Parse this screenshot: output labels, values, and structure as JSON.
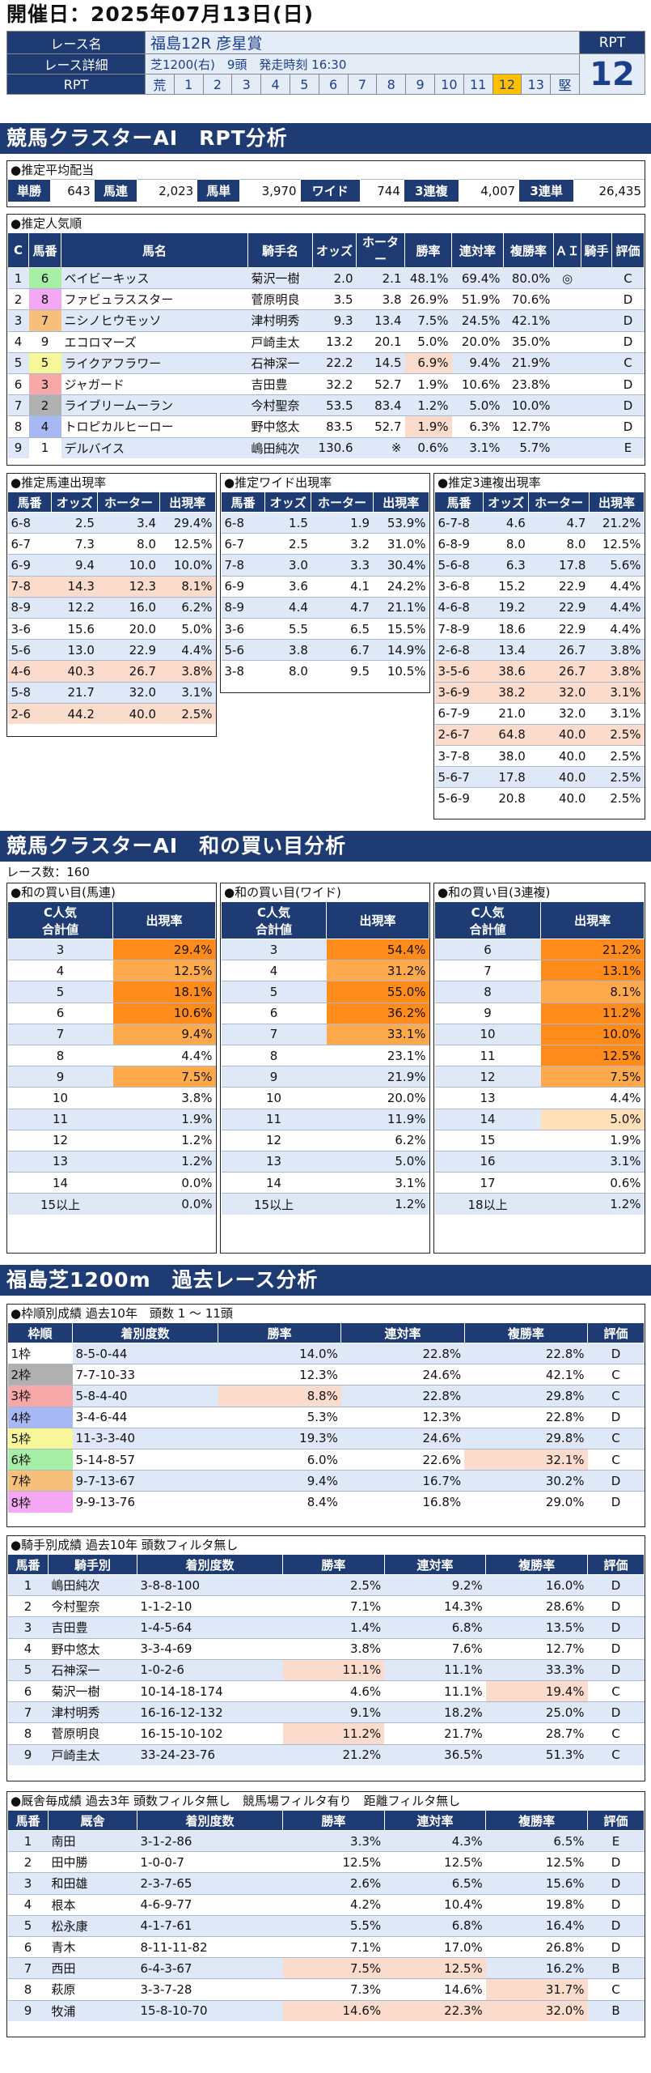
{
  "date_label": "開催日：2025年07月13日(日)",
  "race": {
    "name_label": "レース名",
    "name": "福島12R 彦星賞",
    "detail_label": "レース詳細",
    "detail": "芝1200(右)　9頭　発走時刻 16:30",
    "rpt_label": "RPT",
    "rpt_scale": [
      "荒",
      "1",
      "2",
      "3",
      "4",
      "5",
      "6",
      "7",
      "8",
      "9",
      "10",
      "11",
      "12",
      "13",
      "堅"
    ],
    "rpt_selected": "12",
    "rpt_head": "RPT",
    "rpt_value": "12"
  },
  "sec1_title": "競馬クラスターAI　RPT分析",
  "payout": {
    "title": "●推定平均配当",
    "items": [
      {
        "label": "単勝",
        "value": "643"
      },
      {
        "label": "馬連",
        "value": "2,023"
      },
      {
        "label": "馬単",
        "value": "3,970"
      },
      {
        "label": "ワイド",
        "value": "744"
      },
      {
        "label": "3連複",
        "value": "4,007"
      },
      {
        "label": "3連単",
        "value": "26,435"
      }
    ]
  },
  "popular": {
    "title": "●推定人気順",
    "headers": [
      "C",
      "馬番",
      "馬名",
      "騎手名",
      "オッズ",
      "ホーター",
      "勝率",
      "連対率",
      "複勝率",
      "ＡＩ",
      "騎手",
      "評価"
    ],
    "rows": [
      [
        "1",
        "6",
        "ベイビーキッス",
        "菊沢一樹",
        "2.0",
        "2.1",
        "48.1%",
        "69.4%",
        "80.0%",
        "◎",
        "",
        "C"
      ],
      [
        "2",
        "8",
        "ファビュラススター",
        "菅原明良",
        "3.5",
        "3.8",
        "26.9%",
        "51.9%",
        "70.6%",
        "",
        "",
        "D"
      ],
      [
        "3",
        "7",
        "ニシノヒウモッソ",
        "津村明秀",
        "9.3",
        "13.4",
        "7.5%",
        "24.5%",
        "42.1%",
        "",
        "",
        "D"
      ],
      [
        "4",
        "9",
        "エコロマーズ",
        "戸崎圭太",
        "13.2",
        "20.1",
        "5.0%",
        "20.0%",
        "35.0%",
        "",
        "",
        "D"
      ],
      [
        "5",
        "5",
        "ライクアフラワー",
        "石神深一",
        "22.2",
        "14.5",
        "6.9%",
        "9.4%",
        "21.9%",
        "",
        "",
        "C"
      ],
      [
        "6",
        "3",
        "ジャガード",
        "吉田豊",
        "32.2",
        "52.7",
        "1.9%",
        "10.6%",
        "23.8%",
        "",
        "",
        "D"
      ],
      [
        "7",
        "2",
        "ライブリームーラン",
        "今村聖奈",
        "53.5",
        "83.4",
        "1.2%",
        "5.0%",
        "10.0%",
        "",
        "",
        "D"
      ],
      [
        "8",
        "4",
        "トロピカルヒーロー",
        "野中悠太",
        "83.5",
        "52.7",
        "1.9%",
        "6.3%",
        "12.7%",
        "",
        "",
        "D"
      ],
      [
        "9",
        "1",
        "デルバイス",
        "嶋田純次",
        "130.6",
        "※",
        "0.6%",
        "3.1%",
        "5.7%",
        "",
        "",
        "E"
      ]
    ]
  },
  "umaren": {
    "title": "●推定馬連出現率",
    "headers": [
      "馬番",
      "オッズ",
      "ホーター",
      "出現率"
    ],
    "rows": [
      [
        "6-8",
        "2.5",
        "3.4",
        "29.4%"
      ],
      [
        "6-7",
        "7.3",
        "8.0",
        "12.5%"
      ],
      [
        "6-9",
        "9.4",
        "10.0",
        "10.0%"
      ],
      [
        "7-8",
        "14.3",
        "12.3",
        "8.1%"
      ],
      [
        "8-9",
        "12.2",
        "16.0",
        "6.2%"
      ],
      [
        "3-6",
        "15.6",
        "20.0",
        "5.0%"
      ],
      [
        "5-6",
        "13.0",
        "22.9",
        "4.4%"
      ],
      [
        "4-6",
        "40.3",
        "26.7",
        "3.8%"
      ],
      [
        "5-8",
        "21.7",
        "32.0",
        "3.1%"
      ],
      [
        "2-6",
        "44.2",
        "40.0",
        "2.5%"
      ]
    ]
  },
  "wide": {
    "title": "●推定ワイド出現率",
    "headers": [
      "馬番",
      "オッズ",
      "ホーター",
      "出現率"
    ],
    "rows": [
      [
        "6-8",
        "1.5",
        "1.9",
        "53.9%"
      ],
      [
        "6-7",
        "2.5",
        "3.2",
        "31.0%"
      ],
      [
        "7-8",
        "3.0",
        "3.3",
        "30.4%"
      ],
      [
        "6-9",
        "3.6",
        "4.1",
        "24.2%"
      ],
      [
        "8-9",
        "4.4",
        "4.7",
        "21.1%"
      ],
      [
        "3-6",
        "5.5",
        "6.5",
        "15.5%"
      ],
      [
        "5-6",
        "3.8",
        "6.7",
        "14.9%"
      ],
      [
        "3-8",
        "8.0",
        "9.5",
        "10.5%"
      ]
    ]
  },
  "sanrenpuku": {
    "title": "●推定3連複出現率",
    "headers": [
      "馬番",
      "オッズ",
      "ホーター",
      "出現率"
    ],
    "rows": [
      [
        "6-7-8",
        "4.6",
        "4.7",
        "21.2%"
      ],
      [
        "6-8-9",
        "8.0",
        "8.0",
        "12.5%"
      ],
      [
        "5-6-8",
        "6.3",
        "17.8",
        "5.6%"
      ],
      [
        "3-6-8",
        "15.2",
        "22.9",
        "4.4%"
      ],
      [
        "4-6-8",
        "19.2",
        "22.9",
        "4.4%"
      ],
      [
        "7-8-9",
        "18.6",
        "22.9",
        "4.4%"
      ],
      [
        "2-6-8",
        "13.4",
        "26.7",
        "3.8%"
      ],
      [
        "3-5-6",
        "38.6",
        "26.7",
        "3.8%"
      ],
      [
        "3-6-9",
        "38.2",
        "32.0",
        "3.1%"
      ],
      [
        "6-7-9",
        "21.0",
        "32.0",
        "3.1%"
      ],
      [
        "2-6-7",
        "64.8",
        "40.0",
        "2.5%"
      ],
      [
        "3-7-8",
        "38.0",
        "40.0",
        "2.5%"
      ],
      [
        "5-6-7",
        "17.8",
        "40.0",
        "2.5%"
      ],
      [
        "5-6-9",
        "20.8",
        "40.0",
        "2.5%"
      ]
    ]
  },
  "sec2_title": "競馬クラスターAI　和の買い目分析",
  "race_count": "レース数：160",
  "wa_umaren": {
    "title": "●和の買い目(馬連)",
    "headers": [
      "C人気\n合計値",
      "出現率"
    ],
    "rows": [
      [
        "3",
        "29.4%"
      ],
      [
        "4",
        "12.5%"
      ],
      [
        "5",
        "18.1%"
      ],
      [
        "6",
        "10.6%"
      ],
      [
        "7",
        "9.4%"
      ],
      [
        "8",
        "4.4%"
      ],
      [
        "9",
        "7.5%"
      ],
      [
        "10",
        "3.8%"
      ],
      [
        "11",
        "1.9%"
      ],
      [
        "12",
        "1.2%"
      ],
      [
        "13",
        "1.2%"
      ],
      [
        "14",
        "0.0%"
      ],
      [
        "15以上",
        "0.0%"
      ]
    ],
    "shade": [
      3,
      2,
      3,
      3,
      2,
      0,
      2,
      0,
      0,
      0,
      0,
      0,
      0
    ]
  },
  "wa_wide": {
    "title": "●和の買い目(ワイド)",
    "headers": [
      "C人気\n合計値",
      "出現率"
    ],
    "rows": [
      [
        "3",
        "54.4%"
      ],
      [
        "4",
        "31.2%"
      ],
      [
        "5",
        "55.0%"
      ],
      [
        "6",
        "36.2%"
      ],
      [
        "7",
        "33.1%"
      ],
      [
        "8",
        "23.1%"
      ],
      [
        "9",
        "21.9%"
      ],
      [
        "10",
        "20.0%"
      ],
      [
        "11",
        "11.9%"
      ],
      [
        "12",
        "6.2%"
      ],
      [
        "13",
        "5.0%"
      ],
      [
        "14",
        "3.1%"
      ],
      [
        "15以上",
        "1.2%"
      ]
    ],
    "shade": [
      3,
      2,
      3,
      3,
      2,
      0,
      0,
      0,
      0,
      0,
      0,
      0,
      0
    ]
  },
  "wa_sanren": {
    "title": "●和の買い目(3連複)",
    "headers": [
      "C人気\n合計値",
      "出現率"
    ],
    "rows": [
      [
        "6",
        "21.2%"
      ],
      [
        "7",
        "13.1%"
      ],
      [
        "8",
        "8.1%"
      ],
      [
        "9",
        "11.2%"
      ],
      [
        "10",
        "10.0%"
      ],
      [
        "11",
        "12.5%"
      ],
      [
        "12",
        "7.5%"
      ],
      [
        "13",
        "4.4%"
      ],
      [
        "14",
        "5.0%"
      ],
      [
        "15",
        "1.9%"
      ],
      [
        "16",
        "3.1%"
      ],
      [
        "17",
        "0.6%"
      ],
      [
        "18以上",
        "1.2%"
      ]
    ],
    "shade": [
      3,
      3,
      2,
      3,
      3,
      3,
      2,
      0,
      1,
      0,
      0,
      0,
      0
    ]
  },
  "sec3_title": "福島芝1200m　過去レース分析",
  "waku": {
    "title": "●枠順別成績 過去10年　頭数 1 ～ 11頭",
    "headers": [
      "枠順",
      "着別度数",
      "勝率",
      "連対率",
      "複勝率",
      "評価"
    ],
    "rows": [
      [
        "1枠",
        "8-5-0-44",
        "14.0%",
        "22.8%",
        "22.8%",
        "D"
      ],
      [
        "2枠",
        "7-7-10-33",
        "12.3%",
        "24.6%",
        "42.1%",
        "C"
      ],
      [
        "3枠",
        "5-8-4-40",
        "8.8%",
        "22.8%",
        "29.8%",
        "C"
      ],
      [
        "4枠",
        "3-4-6-44",
        "5.3%",
        "12.3%",
        "22.8%",
        "D"
      ],
      [
        "5枠",
        "11-3-3-40",
        "19.3%",
        "24.6%",
        "29.8%",
        "C"
      ],
      [
        "6枠",
        "5-14-8-57",
        "6.0%",
        "22.6%",
        "32.1%",
        "C"
      ],
      [
        "7枠",
        "9-7-13-67",
        "9.4%",
        "16.7%",
        "30.2%",
        "D"
      ],
      [
        "8枠",
        "9-9-13-76",
        "8.4%",
        "16.8%",
        "29.0%",
        "D"
      ]
    ],
    "colors": [
      "#ffffff",
      "#b0b0b0",
      "#f6a8a8",
      "#a8b8f4",
      "#f7f79a",
      "#a6eda6",
      "#f7c07a",
      "#f4a8f4"
    ],
    "hl": [
      [],
      [],
      [
        2
      ],
      [],
      [],
      [
        4
      ],
      [],
      []
    ]
  },
  "jockey": {
    "title": "●騎手別成績 過去10年 頭数フィルタ無し",
    "headers": [
      "馬番",
      "騎手別",
      "着別度数",
      "勝率",
      "連対率",
      "複勝率",
      "評価"
    ],
    "rows": [
      [
        "1",
        "嶋田純次",
        "3-8-8-100",
        "2.5%",
        "9.2%",
        "16.0%",
        "D"
      ],
      [
        "2",
        "今村聖奈",
        "1-1-2-10",
        "7.1%",
        "14.3%",
        "28.6%",
        "D"
      ],
      [
        "3",
        "吉田豊",
        "1-4-5-64",
        "1.4%",
        "6.8%",
        "13.5%",
        "D"
      ],
      [
        "4",
        "野中悠太",
        "3-3-4-69",
        "3.8%",
        "7.6%",
        "12.7%",
        "D"
      ],
      [
        "5",
        "石神深一",
        "1-0-2-6",
        "11.1%",
        "11.1%",
        "33.3%",
        "D"
      ],
      [
        "6",
        "菊沢一樹",
        "10-14-18-174",
        "4.6%",
        "11.1%",
        "19.4%",
        "C"
      ],
      [
        "7",
        "津村明秀",
        "16-16-12-132",
        "9.1%",
        "18.2%",
        "25.0%",
        "D"
      ],
      [
        "8",
        "菅原明良",
        "16-15-10-102",
        "11.2%",
        "21.7%",
        "28.7%",
        "C"
      ],
      [
        "9",
        "戸崎圭太",
        "33-24-23-76",
        "21.2%",
        "36.5%",
        "51.3%",
        "C"
      ]
    ],
    "hl": [
      [],
      [],
      [],
      [],
      [
        3
      ],
      [
        5
      ],
      [],
      [
        3
      ],
      []
    ]
  },
  "kyusha": {
    "title": "●厩舎毎成績 過去3年 頭数フィルタ無し　競馬場フィルタ有り　距離フィルタ無し",
    "headers": [
      "馬番",
      "厩舎",
      "着別度数",
      "勝率",
      "連対率",
      "複勝率",
      "評価"
    ],
    "rows": [
      [
        "1",
        "南田",
        "3-1-2-86",
        "3.3%",
        "4.3%",
        "6.5%",
        "E"
      ],
      [
        "2",
        "田中勝",
        "1-0-0-7",
        "12.5%",
        "12.5%",
        "12.5%",
        "D"
      ],
      [
        "3",
        "和田雄",
        "2-3-7-65",
        "2.6%",
        "6.5%",
        "15.6%",
        "D"
      ],
      [
        "4",
        "根本",
        "4-6-9-77",
        "4.2%",
        "10.4%",
        "19.8%",
        "D"
      ],
      [
        "5",
        "松永康",
        "4-1-7-61",
        "5.5%",
        "6.8%",
        "16.4%",
        "D"
      ],
      [
        "6",
        "青木",
        "8-11-11-82",
        "7.1%",
        "17.0%",
        "26.8%",
        "D"
      ],
      [
        "7",
        "西田",
        "6-4-3-67",
        "7.5%",
        "12.5%",
        "16.2%",
        "B"
      ],
      [
        "8",
        "萩原",
        "3-3-7-28",
        "7.3%",
        "14.6%",
        "31.7%",
        "C"
      ],
      [
        "9",
        "牧浦",
        "15-8-10-70",
        "14.6%",
        "22.3%",
        "32.0%",
        "B"
      ]
    ],
    "hl": [
      [],
      [],
      [],
      [],
      [],
      [],
      [
        3,
        4
      ],
      [
        5
      ],
      [
        3,
        4,
        5
      ]
    ]
  },
  "colors": {
    "navy": "#1e3b73",
    "rowalt": "#dfe8f7",
    "highlight": "#fadbcc",
    "orange_dark": "#ff8c1a",
    "orange_mid": "#ffa94d",
    "orange_light": "#ffe0b8",
    "rpt_selected": "#ffc000"
  }
}
